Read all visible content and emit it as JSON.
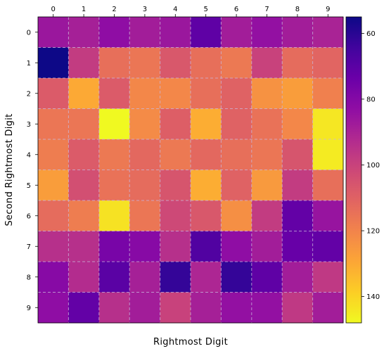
{
  "chart_data": {
    "type": "heatmap",
    "title": "",
    "xlabel": "Rightmost Digit",
    "ylabel": "Second Rightmost Digit",
    "x_categories": [
      "0",
      "1",
      "2",
      "3",
      "4",
      "5",
      "6",
      "7",
      "8",
      "9"
    ],
    "y_categories": [
      "0",
      "1",
      "2",
      "3",
      "4",
      "5",
      "6",
      "7",
      "8",
      "9"
    ],
    "x_tick_position": "top",
    "grid": true,
    "grid_style": "dashed",
    "colormap": "plasma",
    "colorbar_range": [
      55,
      148
    ],
    "colorbar_ticks": [
      60,
      80,
      100,
      120,
      140
    ],
    "colorbar_direction": "high values at bottom (yellow), low at top (dark blue)",
    "values": [
      [
        86,
        89,
        83,
        88,
        86,
        71,
        88,
        84,
        88,
        90
      ],
      [
        55,
        98,
        114,
        116,
        107,
        114,
        117,
        100,
        113,
        111
      ],
      [
        108,
        130,
        108,
        121,
        121,
        114,
        110,
        124,
        127,
        119
      ],
      [
        116,
        116,
        148,
        122,
        109,
        131,
        110,
        115,
        121,
        144
      ],
      [
        118,
        108,
        117,
        112,
        117,
        112,
        114,
        116,
        106,
        145
      ],
      [
        127,
        104,
        115,
        113,
        106,
        131,
        110,
        126,
        98,
        114
      ],
      [
        113,
        118,
        143,
        116,
        102,
        107,
        123,
        98,
        72,
        85
      ],
      [
        94,
        94,
        77,
        81,
        94,
        68,
        83,
        88,
        73,
        72
      ],
      [
        81,
        93,
        70,
        89,
        62,
        91,
        62,
        71,
        88,
        97
      ],
      [
        83,
        72,
        94,
        88,
        100,
        89,
        84,
        84,
        97,
        88
      ]
    ]
  }
}
